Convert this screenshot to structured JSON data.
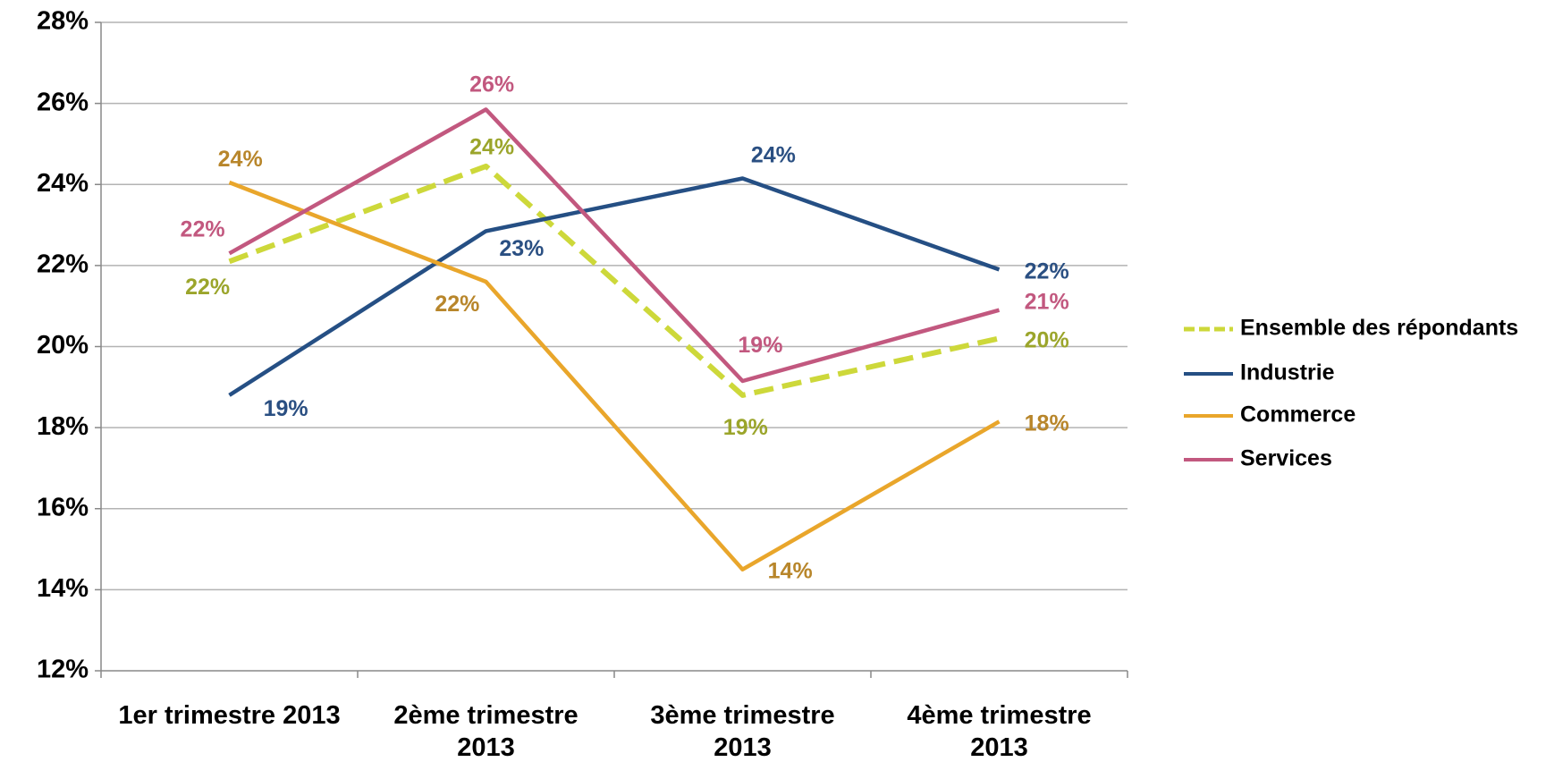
{
  "chart_data": {
    "type": "line",
    "categories": [
      "1er trimestre 2013",
      "2ème trimestre 2013",
      "3ème trimestre 2013",
      "4ème trimestre 2013"
    ],
    "series": [
      {
        "name": "Ensemble des répondants",
        "color": "#cdd83a",
        "label_color": "#9ba52b",
        "dashed": true,
        "values": [
          22.1,
          24.45,
          18.8,
          20.2
        ],
        "value_labels": [
          "22%",
          "24%",
          "19%",
          "20%"
        ]
      },
      {
        "name": "Industrie",
        "color": "#254f84",
        "label_color": "#2a4f82",
        "dashed": false,
        "values": [
          18.8,
          22.85,
          24.15,
          21.9
        ],
        "value_labels": [
          "19%",
          "23%",
          "24%",
          "22%"
        ]
      },
      {
        "name": "Commerce",
        "color": "#e9a62b",
        "label_color": "#b8862b",
        "dashed": false,
        "values": [
          24.05,
          21.6,
          14.5,
          18.15
        ],
        "value_labels": [
          "24%",
          "22%",
          "14%",
          "18%"
        ]
      },
      {
        "name": "Services",
        "color": "#c2587f",
        "label_color": "#c2587f",
        "dashed": false,
        "values": [
          22.3,
          25.85,
          19.15,
          20.9
        ],
        "value_labels": [
          "22%",
          "26%",
          "19%",
          "21%"
        ]
      }
    ],
    "ylim": [
      12,
      28
    ],
    "yticks": [
      {
        "value": 12,
        "label": "12%"
      },
      {
        "value": 14,
        "label": "14%"
      },
      {
        "value": 16,
        "label": "16%"
      },
      {
        "value": 18,
        "label": "18%"
      },
      {
        "value": 20,
        "label": "20%"
      },
      {
        "value": 22,
        "label": "22%"
      },
      {
        "value": 24,
        "label": "24%"
      },
      {
        "value": 26,
        "label": "26%"
      },
      {
        "value": 28,
        "label": "28%"
      }
    ],
    "grid": true,
    "legend": "right"
  }
}
